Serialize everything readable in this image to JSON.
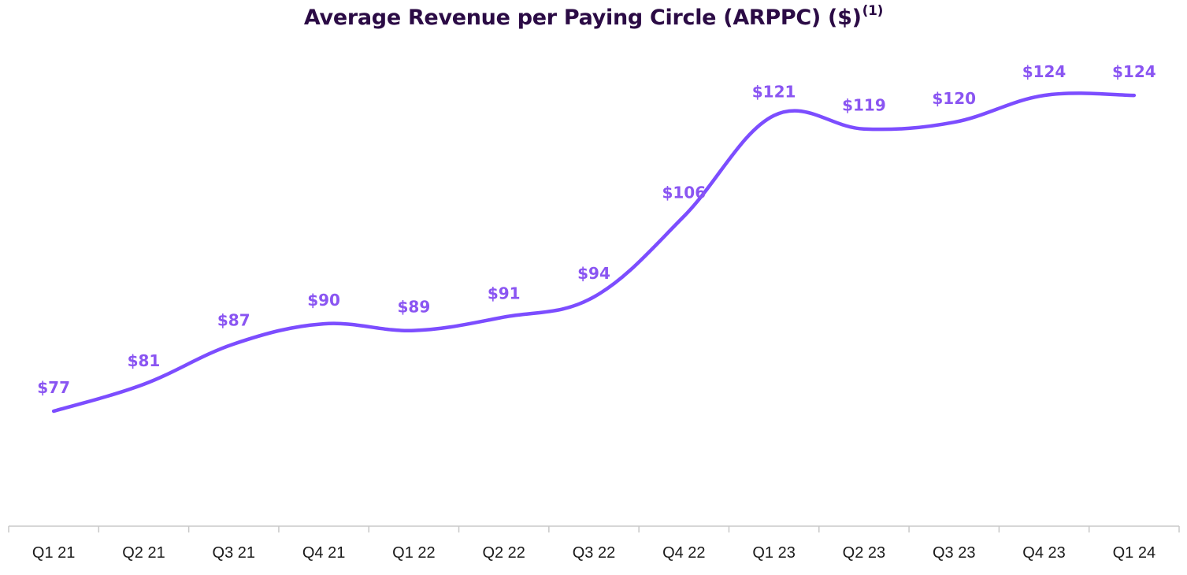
{
  "title": "Average Revenue per Paying Circle (ARPPC) ($)",
  "title_superscript": "(1)",
  "colors": {
    "line": "#7c4dff",
    "label": "#8a55f2",
    "title": "#2b0b45",
    "axis": "#c8c8c8"
  },
  "chart_data": {
    "type": "line",
    "title": "Average Revenue per Paying Circle (ARPPC) ($)",
    "xlabel": "",
    "ylabel": "",
    "categories": [
      "Q1 21",
      "Q2 21",
      "Q3 21",
      "Q4 21",
      "Q1 22",
      "Q2 22",
      "Q3 22",
      "Q4 22",
      "Q1 23",
      "Q2 23",
      "Q3 23",
      "Q4 23",
      "Q1 24"
    ],
    "series": [
      {
        "name": "ARPPC",
        "values": [
          77,
          81,
          87,
          90,
          89,
          91,
          94,
          106,
          121,
          119,
          120,
          124,
          124
        ],
        "labels": [
          "$77",
          "$81",
          "$87",
          "$90",
          "$89",
          "$91",
          "$94",
          "$106",
          "$121",
          "$119",
          "$120",
          "$124",
          "$124"
        ]
      }
    ],
    "ylim": [
      60,
      130
    ],
    "grid": false,
    "legend": "none"
  }
}
